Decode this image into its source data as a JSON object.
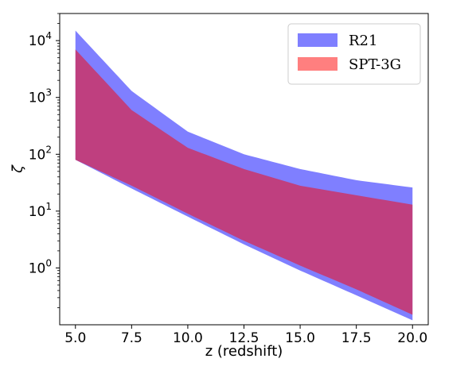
{
  "chart_data": {
    "type": "area",
    "title": "",
    "xlabel": "z (redshift)",
    "ylabel": "ζ",
    "xlim": [
      4.3,
      20.7
    ],
    "ylim": [
      0.1,
      30000
    ],
    "yscale": "log",
    "grid": false,
    "legend_position": "top-right",
    "x_ticks": [
      5.0,
      7.5,
      10.0,
      12.5,
      15.0,
      17.5,
      20.0
    ],
    "x_tick_labels": [
      "5.0",
      "7.5",
      "10.0",
      "12.5",
      "15.0",
      "17.5",
      "20.0"
    ],
    "y_ticks": [
      1,
      10,
      100,
      1000,
      10000
    ],
    "y_tick_labels": [
      {
        "base": "10",
        "exp": "0"
      },
      {
        "base": "10",
        "exp": "1"
      },
      {
        "base": "10",
        "exp": "2"
      },
      {
        "base": "10",
        "exp": "3"
      },
      {
        "base": "10",
        "exp": "4"
      }
    ],
    "x": [
      5.0,
      7.5,
      10.0,
      12.5,
      15.0,
      17.5,
      20.0
    ],
    "series": [
      {
        "name": "R21",
        "color": "#0000ff",
        "alpha": 0.5,
        "upper": [
          15000,
          1300,
          250,
          100,
          55,
          35,
          26
        ],
        "lower": [
          80,
          25,
          8,
          2.6,
          0.9,
          0.33,
          0.12
        ]
      },
      {
        "name": "SPT-3G",
        "color": "#ff0000",
        "alpha": 0.5,
        "upper": [
          7000,
          600,
          130,
          55,
          28,
          19,
          13
        ],
        "lower": [
          80,
          28,
          9,
          3,
          1.1,
          0.42,
          0.15
        ]
      }
    ]
  }
}
